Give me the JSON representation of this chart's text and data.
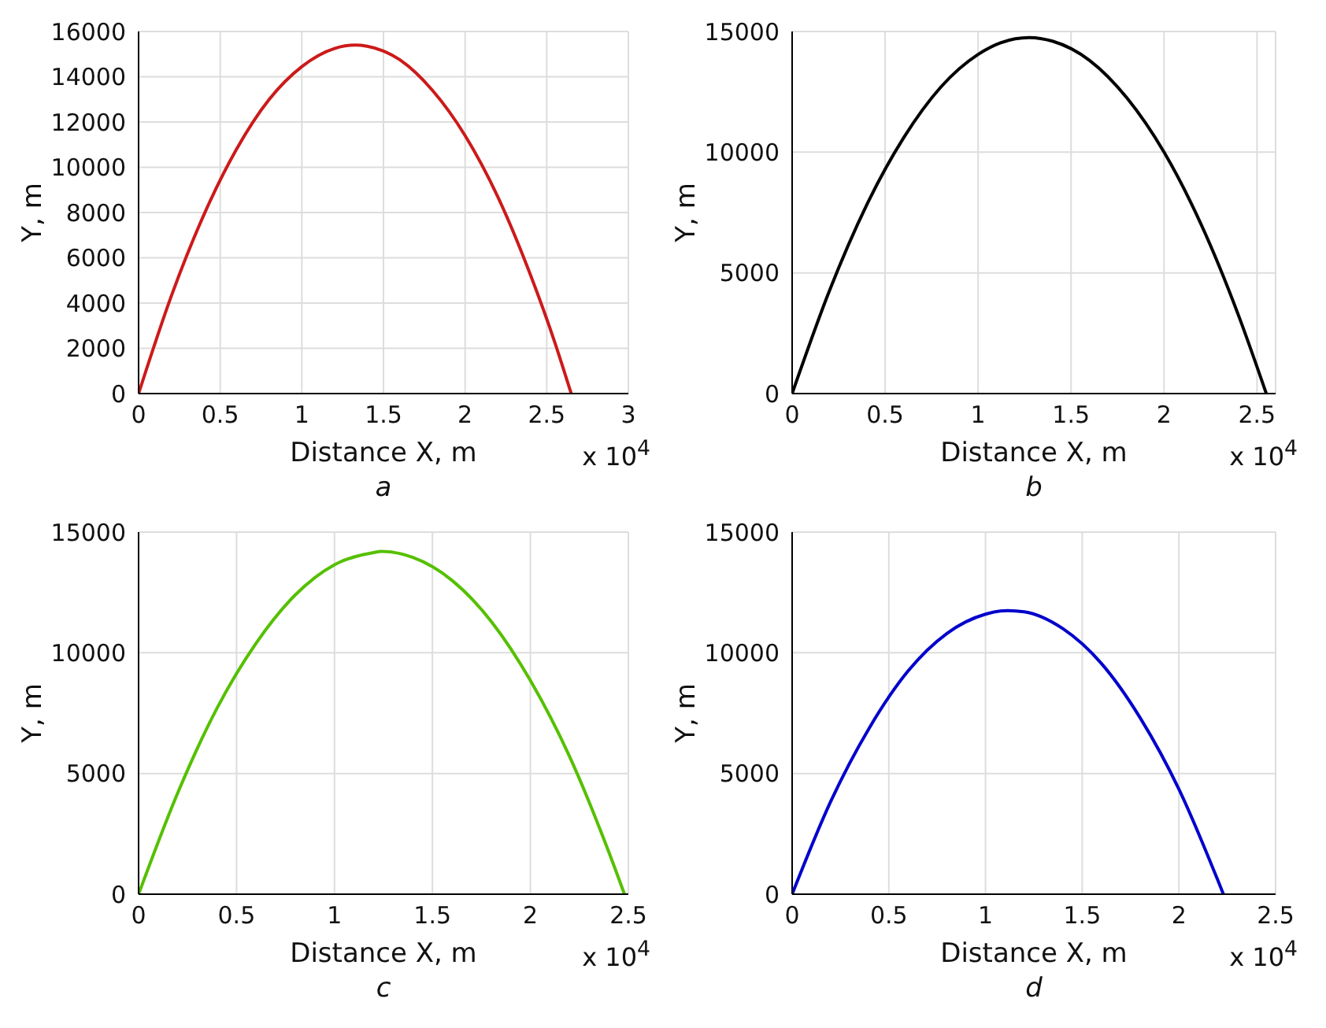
{
  "chart_data": [
    {
      "type": "line",
      "xlabel": "Distance X, m",
      "ylabel": "Y, m",
      "annotations": [
        "x 10$^{4}$",
        "a"
      ],
      "x": [
        0,
        0.2,
        0.4,
        0.6,
        0.8,
        1.0,
        1.2,
        1.325,
        1.4,
        1.6,
        1.8,
        2.0,
        2.2,
        2.4,
        2.55,
        2.65
      ],
      "series": [
        {
          "color": "#cc1a1a",
          "values": [
            0,
            4300,
            7900,
            10800,
            13000,
            14450,
            15250,
            15400,
            15350,
            14750,
            13400,
            11400,
            8700,
            5250,
            2250,
            0
          ]
        }
      ],
      "xlim": [
        0,
        3
      ],
      "xticks": [
        0,
        0.5,
        1,
        1.5,
        2,
        2.5,
        3
      ],
      "ylim": [
        0,
        16000
      ],
      "yticks": [
        0,
        2000,
        4000,
        6000,
        8000,
        10000,
        12000,
        14000,
        16000
      ],
      "grid": true
    },
    {
      "type": "line",
      "xlabel": "Distance X, m",
      "ylabel": "Y, m",
      "annotations": [
        "x 10$^{4}$",
        "b"
      ],
      "x": [
        0,
        0.2,
        0.4,
        0.6,
        0.8,
        1.0,
        1.2,
        1.275,
        1.4,
        1.6,
        1.8,
        2.0,
        2.2,
        2.4,
        2.55
      ],
      "series": [
        {
          "color": "#000000",
          "values": [
            0,
            4250,
            7800,
            10600,
            12700,
            14050,
            14700,
            14750,
            14600,
            13800,
            12250,
            10000,
            7000,
            3250,
            0
          ]
        }
      ],
      "xlim": [
        0,
        2.6
      ],
      "xticks": [
        0,
        0.5,
        1,
        1.5,
        2,
        2.5
      ],
      "ylim": [
        0,
        15000
      ],
      "yticks": [
        0,
        5000,
        10000,
        15000
      ],
      "grid": true
    },
    {
      "type": "line",
      "xlabel": "Distance X, m",
      "ylabel": "Y, m",
      "annotations": [
        "x 10$^{4}$",
        "c"
      ],
      "x": [
        0,
        0.2,
        0.4,
        0.6,
        0.8,
        1.0,
        1.2,
        1.24,
        1.4,
        1.6,
        1.8,
        2.0,
        2.2,
        2.4,
        2.48
      ],
      "series": [
        {
          "color": "#55c000",
          "values": [
            0,
            4200,
            7700,
            10400,
            12400,
            13650,
            14150,
            14200,
            13950,
            13000,
            11300,
            8850,
            5700,
            1750,
            0
          ]
        }
      ],
      "xlim": [
        0,
        2.5
      ],
      "xticks": [
        0,
        0.5,
        1,
        1.5,
        2,
        2.5
      ],
      "ylim": [
        0,
        15000
      ],
      "yticks": [
        0,
        5000,
        10000,
        15000
      ],
      "grid": true
    },
    {
      "type": "line",
      "xlabel": "Distance X, m",
      "ylabel": "Y, m",
      "annotations": [
        "x 10$^{4}$",
        "d"
      ],
      "x": [
        0,
        0.2,
        0.4,
        0.6,
        0.8,
        1.0,
        1.115,
        1.2,
        1.4,
        1.6,
        1.8,
        2.0,
        2.2,
        2.23
      ],
      "series": [
        {
          "color": "#0000cc",
          "values": [
            0,
            3850,
            6900,
            9250,
            10800,
            11600,
            11750,
            11700,
            11000,
            9550,
            7300,
            4350,
            600,
            0
          ]
        }
      ],
      "xlim": [
        0,
        2.5
      ],
      "xticks": [
        0,
        0.5,
        1,
        1.5,
        2,
        2.5
      ],
      "ylim": [
        0,
        15000
      ],
      "yticks": [
        0,
        5000,
        10000,
        15000
      ],
      "grid": true
    }
  ]
}
